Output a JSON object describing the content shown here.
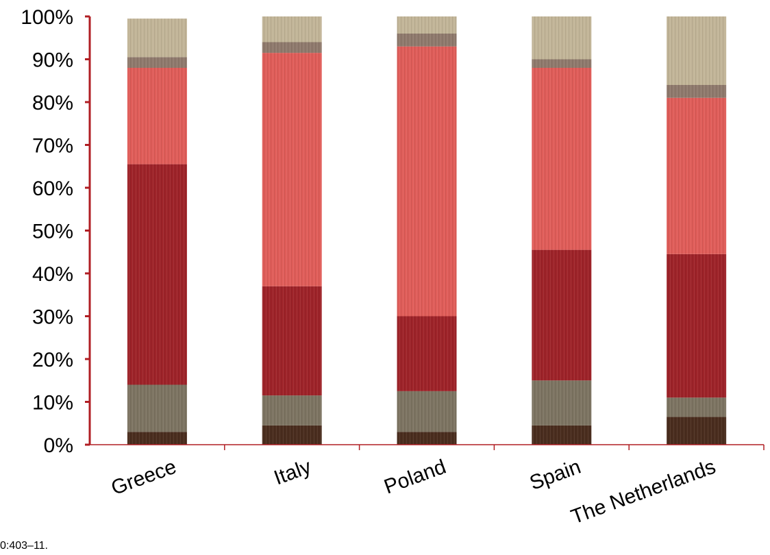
{
  "chart_data": {
    "type": "bar",
    "stacked": true,
    "normalized_percent": true,
    "categories": [
      "Greece",
      "Italy",
      "Poland",
      "Spain",
      "The Netherlands"
    ],
    "series": [
      {
        "color": "#4a2d1e",
        "values": [
          3,
          4.5,
          3,
          4.5,
          6.5
        ]
      },
      {
        "color": "#7d7462",
        "values": [
          11,
          7,
          9.5,
          10.5,
          4.5
        ]
      },
      {
        "color": "#9e2329",
        "values": [
          51.5,
          25.5,
          17.5,
          30.5,
          33.5
        ]
      },
      {
        "color": "#e05d59",
        "values": [
          22.5,
          54.5,
          63,
          42.5,
          36.5
        ]
      },
      {
        "color": "#8f7a6d",
        "values": [
          2.5,
          2.5,
          3,
          2,
          3
        ]
      },
      {
        "color": "#c2b598",
        "values": [
          9,
          6,
          4,
          10,
          16
        ]
      }
    ],
    "y_ticks": [
      "0%",
      "10%",
      "20%",
      "30%",
      "40%",
      "50%",
      "60%",
      "70%",
      "80%",
      "90%",
      "100%"
    ],
    "ylim": [
      0,
      100
    ],
    "axis_color": "#b01e23",
    "grid": false,
    "legend": "none",
    "title": "",
    "xlabel": "",
    "ylabel": ""
  },
  "footnote": "0:403–11."
}
